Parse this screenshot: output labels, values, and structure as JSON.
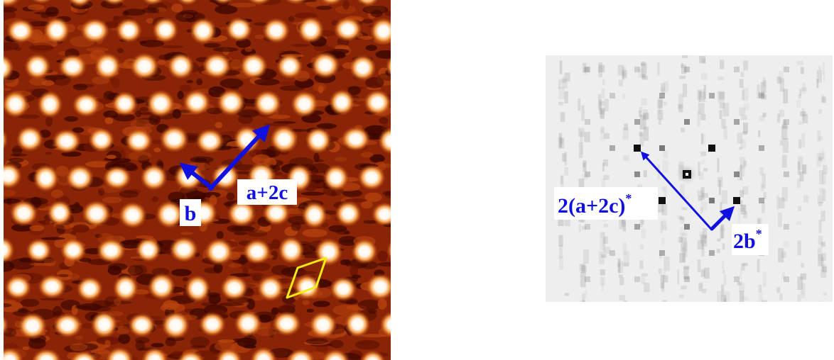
{
  "colors": {
    "page_background": "#ffffff",
    "stm_dark": "#3a0600",
    "stm_mid": "#a83208",
    "stm_bright": "#ffffff",
    "fft_background": "#eeeeee",
    "fft_spot": "#222222",
    "vector_arrow": "#1010e0",
    "unit_cell_outline": "#f2ee10",
    "label_box": "#ffffff"
  },
  "stm_panel": {
    "content": "real-space STM image of a hexagonal-like lattice of bright atomic protrusions on a dark orange background",
    "vector_labels": {
      "b": "b",
      "a_plus_2c": "a+2c"
    },
    "unit_cell": "yellow parallelogram outline"
  },
  "fft_panel": {
    "content": "Fourier transform pattern with dark spots on light gray background",
    "vector_labels": {
      "reciprocal_1": "2(a+2c)",
      "reciprocal_1_superscript": "*",
      "reciprocal_2": "2b",
      "reciprocal_2_superscript": "*"
    }
  }
}
